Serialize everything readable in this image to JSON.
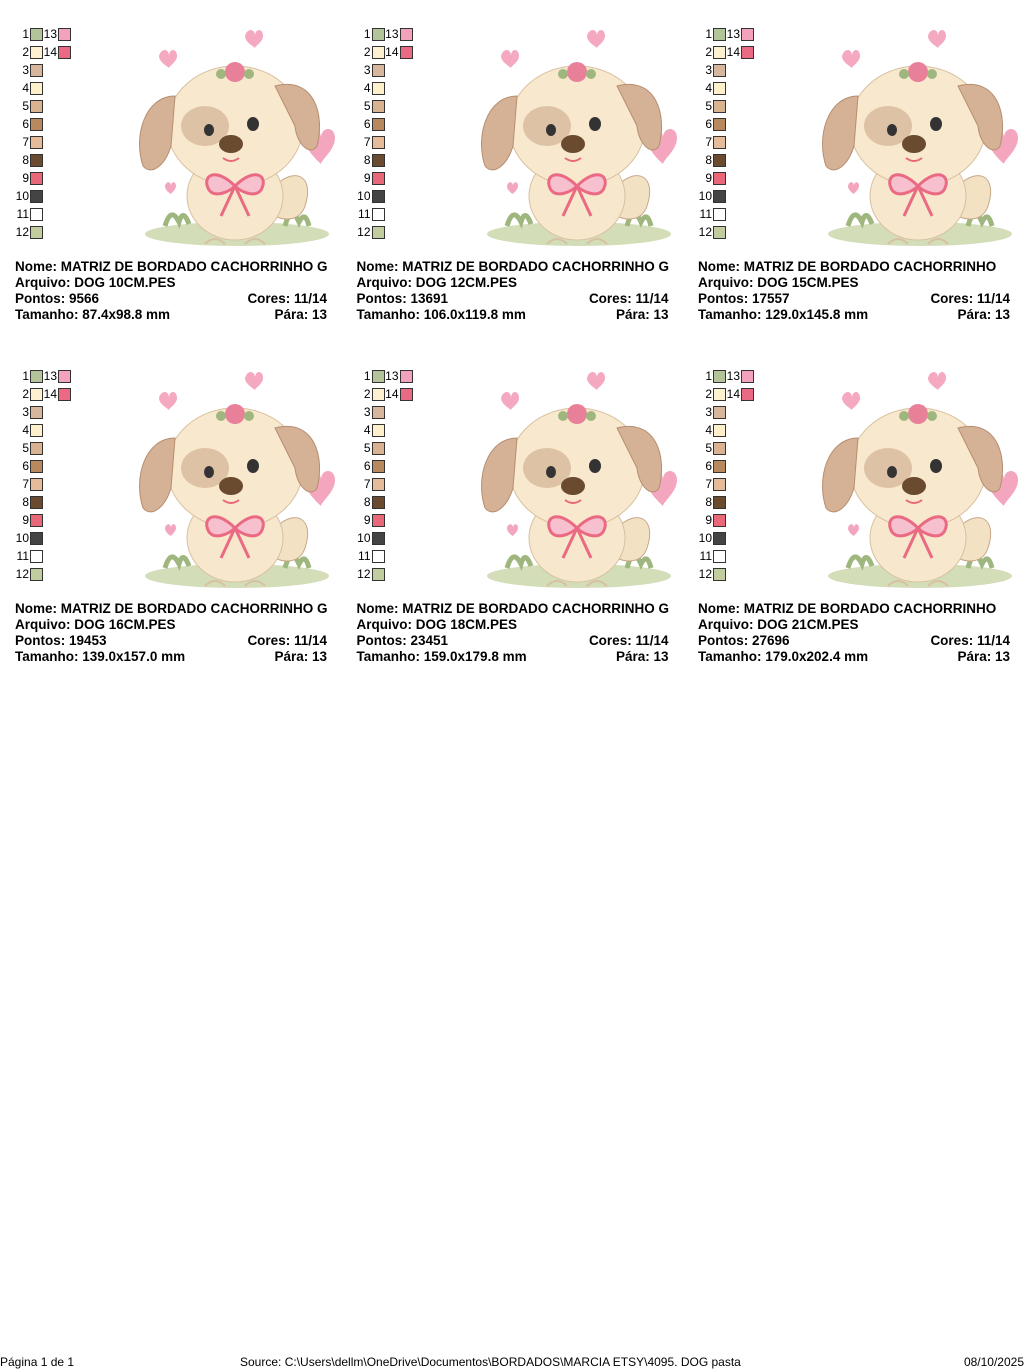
{
  "palette": [
    {
      "number": "1",
      "color": "#b3c39a"
    },
    {
      "number": "2",
      "color": "#fdf1d2"
    },
    {
      "number": "3",
      "color": "#d6b79d"
    },
    {
      "number": "4",
      "color": "#fdf0cb"
    },
    {
      "number": "5",
      "color": "#d9b292"
    },
    {
      "number": "6",
      "color": "#b8885f"
    },
    {
      "number": "7",
      "color": "#e5bb9a"
    },
    {
      "number": "8",
      "color": "#6b4b2f"
    },
    {
      "number": "9",
      "color": "#e8687a"
    },
    {
      "number": "10",
      "color": "#444444"
    },
    {
      "number": "11",
      "color": "#ffffff"
    },
    {
      "number": "12",
      "color": "#c1cd9e"
    },
    {
      "number": "13",
      "color": "#f2a3bb"
    },
    {
      "number": "14",
      "color": "#e96a82"
    }
  ],
  "cards": [
    {
      "name": "Nome: MATRIZ DE BORDADO CACHORRINHO G",
      "file": "Arquivo: DOG 10CM.PES",
      "points": "Pontos: 9566",
      "colors": "Cores: 11/14",
      "size": "Tamanho: 87.4x98.8 mm",
      "stop": "Pára: 13"
    },
    {
      "name": "Nome: MATRIZ DE BORDADO CACHORRINHO G",
      "file": "Arquivo: DOG 12CM.PES",
      "points": "Pontos: 13691",
      "colors": "Cores: 11/14",
      "size": "Tamanho: 106.0x119.8 mm",
      "stop": "Pára: 13"
    },
    {
      "name": "Nome: MATRIZ DE BORDADO CACHORRINHO",
      "file": "Arquivo: DOG 15CM.PES",
      "points": "Pontos: 17557",
      "colors": "Cores: 11/14",
      "size": "Tamanho: 129.0x145.8 mm",
      "stop": "Pára: 13"
    },
    {
      "name": "Nome: MATRIZ DE BORDADO CACHORRINHO G",
      "file": "Arquivo: DOG 16CM.PES",
      "points": "Pontos: 19453",
      "colors": "Cores: 11/14",
      "size": "Tamanho: 139.0x157.0 mm",
      "stop": "Pára: 13"
    },
    {
      "name": "Nome: MATRIZ DE BORDADO CACHORRINHO G",
      "file": "Arquivo: DOG 18CM.PES",
      "points": "Pontos: 23451",
      "colors": "Cores: 11/14",
      "size": "Tamanho: 159.0x179.8 mm",
      "stop": "Pára: 13"
    },
    {
      "name": "Nome: MATRIZ DE BORDADO CACHORRINHO",
      "file": "Arquivo: DOG 21CM.PES",
      "points": "Pontos: 27696",
      "colors": "Cores: 11/14",
      "size": "Tamanho: 179.0x202.4 mm",
      "stop": "Pára: 13"
    }
  ],
  "footer": {
    "page": "Página 1 de 1",
    "source": "Source: C:\\Users\\dellm\\OneDrive\\Documentos\\BORDADOS\\MARCIA ETSY\\4095. DOG pasta",
    "date": "08/10/2025"
  }
}
